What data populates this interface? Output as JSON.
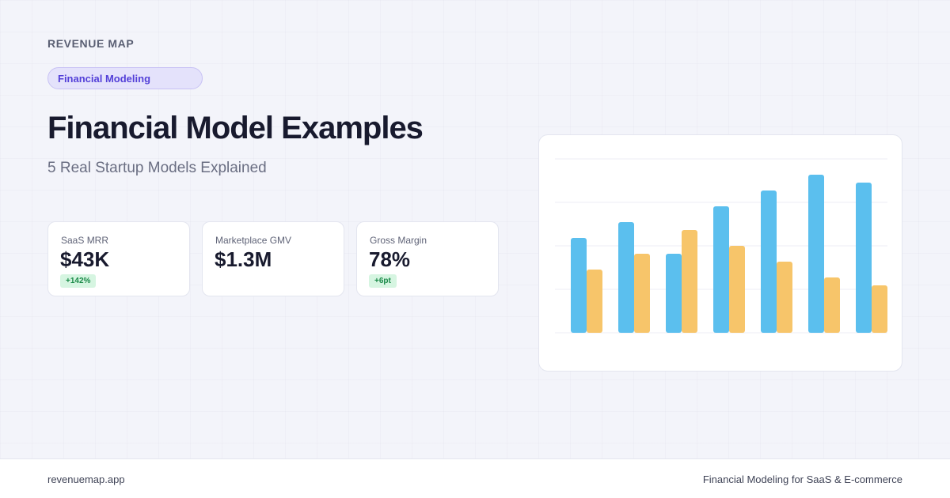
{
  "brand": "REVENUE MAP",
  "tag": "Financial Modeling",
  "title": "Financial Model Examples",
  "subtitle": "5 Real Startup Models Explained",
  "stats": [
    {
      "label": "SaaS MRR",
      "value": "$43K",
      "badge": "+142%"
    },
    {
      "label": "Marketplace GMV",
      "value": "$1.3M",
      "badge": ""
    },
    {
      "label": "Gross Margin",
      "value": "78%",
      "badge": "+6pt"
    }
  ],
  "colors": {
    "accent": "#5340d8",
    "series_blue": "#5bbfee",
    "series_orange": "#f7c56a",
    "badge_green": "#1a8a48"
  },
  "chart_data": {
    "type": "bar",
    "categories": [
      "",
      "",
      "",
      "",
      "",
      "",
      ""
    ],
    "series": [
      {
        "values": [
          60,
          70,
          50,
          80,
          90,
          100,
          95
        ],
        "color": "#5bbfee"
      },
      {
        "values": [
          40,
          50,
          65,
          55,
          45,
          35,
          30
        ],
        "color": "#f7c56a"
      }
    ],
    "ylim": [
      0,
      110
    ],
    "grid": true,
    "legend": "none"
  },
  "footer": {
    "site": "revenuemap.app",
    "tagline": "Financial Modeling for SaaS & E-commerce"
  }
}
